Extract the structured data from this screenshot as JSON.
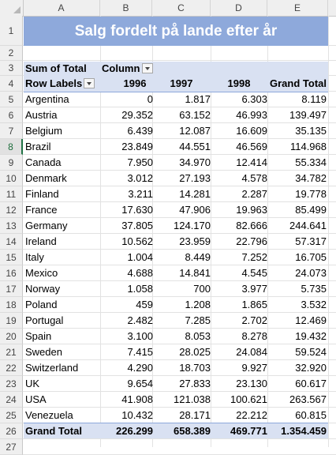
{
  "columns": [
    "A",
    "B",
    "C",
    "D",
    "E"
  ],
  "title": "Salg fordelt på lande efter år",
  "pivot": {
    "sum_label": "Sum of Total",
    "column_label": "Column",
    "row_labels": "Row Labels",
    "years": [
      "1996",
      "1997",
      "1998"
    ],
    "grand_total_header": "Grand Total",
    "rows": [
      {
        "country": "Argentina",
        "v1996": "0",
        "v1997": "1.817",
        "v1998": "6.303",
        "total": "8.119"
      },
      {
        "country": "Austria",
        "v1996": "29.352",
        "v1997": "63.152",
        "v1998": "46.993",
        "total": "139.497"
      },
      {
        "country": "Belgium",
        "v1996": "6.439",
        "v1997": "12.087",
        "v1998": "16.609",
        "total": "35.135"
      },
      {
        "country": "Brazil",
        "v1996": "23.849",
        "v1997": "44.551",
        "v1998": "46.569",
        "total": "114.968"
      },
      {
        "country": "Canada",
        "v1996": "7.950",
        "v1997": "34.970",
        "v1998": "12.414",
        "total": "55.334"
      },
      {
        "country": "Denmark",
        "v1996": "3.012",
        "v1997": "27.193",
        "v1998": "4.578",
        "total": "34.782"
      },
      {
        "country": "Finland",
        "v1996": "3.211",
        "v1997": "14.281",
        "v1998": "2.287",
        "total": "19.778"
      },
      {
        "country": "France",
        "v1996": "17.630",
        "v1997": "47.906",
        "v1998": "19.963",
        "total": "85.499"
      },
      {
        "country": "Germany",
        "v1996": "37.805",
        "v1997": "124.170",
        "v1998": "82.666",
        "total": "244.641"
      },
      {
        "country": "Ireland",
        "v1996": "10.562",
        "v1997": "23.959",
        "v1998": "22.796",
        "total": "57.317"
      },
      {
        "country": "Italy",
        "v1996": "1.004",
        "v1997": "8.449",
        "v1998": "7.252",
        "total": "16.705"
      },
      {
        "country": "Mexico",
        "v1996": "4.688",
        "v1997": "14.841",
        "v1998": "4.545",
        "total": "24.073"
      },
      {
        "country": "Norway",
        "v1996": "1.058",
        "v1997": "700",
        "v1998": "3.977",
        "total": "5.735"
      },
      {
        "country": "Poland",
        "v1996": "459",
        "v1997": "1.208",
        "v1998": "1.865",
        "total": "3.532"
      },
      {
        "country": "Portugal",
        "v1996": "2.482",
        "v1997": "7.285",
        "v1998": "2.702",
        "total": "12.469"
      },
      {
        "country": "Spain",
        "v1996": "3.100",
        "v1997": "8.053",
        "v1998": "8.278",
        "total": "19.432"
      },
      {
        "country": "Sweden",
        "v1996": "7.415",
        "v1997": "28.025",
        "v1998": "24.084",
        "total": "59.524"
      },
      {
        "country": "Switzerland",
        "v1996": "4.290",
        "v1997": "18.703",
        "v1998": "9.927",
        "total": "32.920"
      },
      {
        "country": "UK",
        "v1996": "9.654",
        "v1997": "27.833",
        "v1998": "23.130",
        "total": "60.617"
      },
      {
        "country": "USA",
        "v1996": "41.908",
        "v1997": "121.038",
        "v1998": "100.621",
        "total": "263.567"
      },
      {
        "country": "Venezuela",
        "v1996": "10.432",
        "v1997": "28.171",
        "v1998": "22.212",
        "total": "60.815"
      }
    ],
    "grand_total": {
      "label": "Grand Total",
      "v1996": "226.299",
      "v1997": "658.389",
      "v1998": "469.771",
      "total": "1.354.459"
    }
  },
  "row_numbers": [
    "1",
    "2",
    "3",
    "4",
    "5",
    "6",
    "7",
    "8",
    "9",
    "10",
    "11",
    "12",
    "13",
    "14",
    "15",
    "16",
    "17",
    "18",
    "19",
    "20",
    "21",
    "22",
    "23",
    "24",
    "25",
    "26",
    "27"
  ],
  "selected_row": "8",
  "colors": {
    "title_fill": "#8ea9db",
    "header_band": "#d9e1f2",
    "selection": "#217346"
  }
}
